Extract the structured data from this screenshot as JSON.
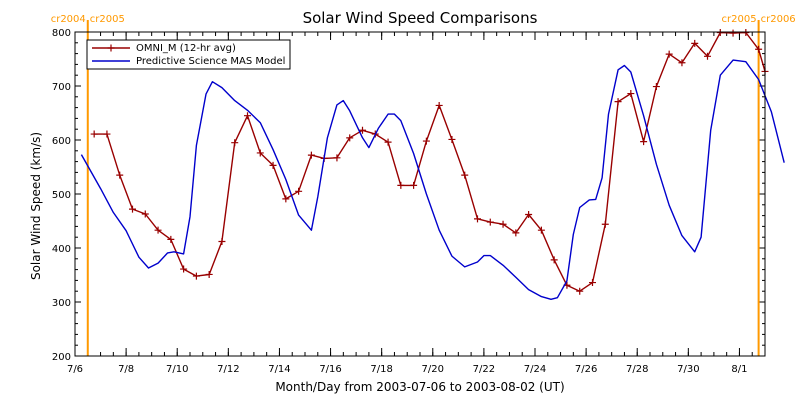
{
  "chart_data": {
    "type": "line",
    "title": "Solar Wind Speed Comparisons",
    "xlabel": "Month/Day from 2003-07-06 to 2003-08-02 (UT)",
    "ylabel": "Solar Wind Speed (km/s)",
    "ylim": [
      200,
      800
    ],
    "y_ticks": [
      200,
      300,
      400,
      500,
      600,
      700,
      800
    ],
    "xlim": [
      "2003-07-06",
      "2003-08-02"
    ],
    "x_ticks": [
      {
        "date": "2003-07-06",
        "label": "7/6"
      },
      {
        "date": "2003-07-08",
        "label": "7/8"
      },
      {
        "date": "2003-07-10",
        "label": "7/10"
      },
      {
        "date": "2003-07-12",
        "label": "7/12"
      },
      {
        "date": "2003-07-14",
        "label": "7/14"
      },
      {
        "date": "2003-07-16",
        "label": "7/16"
      },
      {
        "date": "2003-07-18",
        "label": "7/18"
      },
      {
        "date": "2003-07-20",
        "label": "7/20"
      },
      {
        "date": "2003-07-22",
        "label": "7/22"
      },
      {
        "date": "2003-07-24",
        "label": "7/24"
      },
      {
        "date": "2003-07-26",
        "label": "7/26"
      },
      {
        "date": "2003-07-28",
        "label": "7/28"
      },
      {
        "date": "2003-07-30",
        "label": "7/30"
      },
      {
        "date": "2003-08-01",
        "label": "8/1"
      }
    ],
    "legend_position": "top-left",
    "markers": [
      {
        "date": "2003-07-06 12:00",
        "label_left": "cr2004",
        "label_right": "cr2005",
        "color": "#FF9900"
      },
      {
        "date": "2003-08-01 18:00",
        "label_left": "cr2005",
        "label_right": "cr2006",
        "color": "#FF9900"
      }
    ],
    "series": [
      {
        "name": "OMNI_M (12-hr avg)",
        "color": "#990000",
        "marker": "+",
        "points": [
          [
            "2003-07-06 18:00",
            611
          ],
          [
            "2003-07-07 06:00",
            611
          ],
          [
            "2003-07-07 18:00",
            535
          ],
          [
            "2003-07-08 06:00",
            472
          ],
          [
            "2003-07-08 18:00",
            463
          ],
          [
            "2003-07-09 06:00",
            433
          ],
          [
            "2003-07-09 18:00",
            416
          ],
          [
            "2003-07-10 06:00",
            361
          ],
          [
            "2003-07-10 18:00",
            348
          ],
          [
            "2003-07-11 06:00",
            351
          ],
          [
            "2003-07-11 18:00",
            412
          ],
          [
            "2003-07-12 06:00",
            595
          ],
          [
            "2003-07-12 18:00",
            645
          ],
          [
            "2003-07-13 06:00",
            576
          ],
          [
            "2003-07-13 18:00",
            553
          ],
          [
            "2003-07-14 06:00",
            491
          ],
          [
            "2003-07-14 18:00",
            505
          ],
          [
            "2003-07-15 06:00",
            572
          ],
          [
            "2003-07-15 18:00",
            566
          ],
          [
            "2003-07-16 06:00",
            567
          ],
          [
            "2003-07-16 18:00",
            604
          ],
          [
            "2003-07-17 06:00",
            618
          ],
          [
            "2003-07-17 18:00",
            611
          ],
          [
            "2003-07-18 06:00",
            596
          ],
          [
            "2003-07-18 18:00",
            516
          ],
          [
            "2003-07-19 06:00",
            516
          ],
          [
            "2003-07-19 18:00",
            598
          ],
          [
            "2003-07-20 06:00",
            664
          ],
          [
            "2003-07-20 18:00",
            601
          ],
          [
            "2003-07-21 06:00",
            535
          ],
          [
            "2003-07-21 18:00",
            454
          ],
          [
            "2003-07-22 06:00",
            448
          ],
          [
            "2003-07-22 18:00",
            444
          ],
          [
            "2003-07-23 06:00",
            428
          ],
          [
            "2003-07-23 18:00",
            462
          ],
          [
            "2003-07-24 06:00",
            433
          ],
          [
            "2003-07-24 18:00",
            378
          ],
          [
            "2003-07-25 06:00",
            331
          ],
          [
            "2003-07-25 18:00",
            320
          ],
          [
            "2003-07-26 06:00",
            336
          ],
          [
            "2003-07-26 18:00",
            444
          ],
          [
            "2003-07-27 06:00",
            671
          ],
          [
            "2003-07-27 18:00",
            686
          ],
          [
            "2003-07-28 06:00",
            597
          ],
          [
            "2003-07-28 18:00",
            699
          ],
          [
            "2003-07-29 06:00",
            759
          ],
          [
            "2003-07-29 18:00",
            743
          ],
          [
            "2003-07-30 06:00",
            779
          ],
          [
            "2003-07-30 18:00",
            755
          ],
          [
            "2003-07-31 06:00",
            799
          ],
          [
            "2003-07-31 18:00",
            798
          ],
          [
            "2003-08-01 06:00",
            799
          ],
          [
            "2003-08-01 18:00",
            768
          ],
          [
            "2003-08-02 00:00",
            727
          ]
        ]
      },
      {
        "name": "Predictive Science MAS Model",
        "color": "#0000CC",
        "points": [
          [
            "2003-07-06 06:00",
            573
          ],
          [
            "2003-07-07 00:00",
            510
          ],
          [
            "2003-07-07 12:00",
            466
          ],
          [
            "2003-07-08 00:00",
            432
          ],
          [
            "2003-07-08 12:00",
            383
          ],
          [
            "2003-07-08 21:00",
            363
          ],
          [
            "2003-07-09 06:00",
            372
          ],
          [
            "2003-07-09 15:00",
            391
          ],
          [
            "2003-07-09 21:00",
            393
          ],
          [
            "2003-07-10 06:00",
            389
          ],
          [
            "2003-07-10 12:00",
            458
          ],
          [
            "2003-07-10 18:00",
            590
          ],
          [
            "2003-07-11 03:00",
            685
          ],
          [
            "2003-07-11 09:00",
            708
          ],
          [
            "2003-07-11 18:00",
            697
          ],
          [
            "2003-07-12 06:00",
            673
          ],
          [
            "2003-07-12 18:00",
            655
          ],
          [
            "2003-07-13 06:00",
            632
          ],
          [
            "2003-07-13 18:00",
            582
          ],
          [
            "2003-07-14 06:00",
            527
          ],
          [
            "2003-07-14 18:00",
            461
          ],
          [
            "2003-07-15 06:00",
            433
          ],
          [
            "2003-07-15 12:00",
            495
          ],
          [
            "2003-07-15 21:00",
            604
          ],
          [
            "2003-07-16 06:00",
            665
          ],
          [
            "2003-07-16 12:00",
            673
          ],
          [
            "2003-07-16 18:00",
            654
          ],
          [
            "2003-07-17 06:00",
            604
          ],
          [
            "2003-07-17 12:00",
            586
          ],
          [
            "2003-07-17 21:00",
            622
          ],
          [
            "2003-07-18 06:00",
            648
          ],
          [
            "2003-07-18 12:00",
            648
          ],
          [
            "2003-07-18 18:00",
            636
          ],
          [
            "2003-07-19 06:00",
            575
          ],
          [
            "2003-07-19 18:00",
            500
          ],
          [
            "2003-07-20 06:00",
            433
          ],
          [
            "2003-07-20 18:00",
            385
          ],
          [
            "2003-07-21 06:00",
            365
          ],
          [
            "2003-07-21 18:00",
            374
          ],
          [
            "2003-07-22 00:00",
            386
          ],
          [
            "2003-07-22 06:00",
            386
          ],
          [
            "2003-07-22 18:00",
            368
          ],
          [
            "2003-07-23 06:00",
            346
          ],
          [
            "2003-07-23 18:00",
            323
          ],
          [
            "2003-07-24 06:00",
            310
          ],
          [
            "2003-07-24 15:00",
            305
          ],
          [
            "2003-07-24 21:00",
            308
          ],
          [
            "2003-07-25 06:00",
            339
          ],
          [
            "2003-07-25 12:00",
            425
          ],
          [
            "2003-07-25 18:00",
            475
          ],
          [
            "2003-07-26 03:00",
            489
          ],
          [
            "2003-07-26 09:00",
            490
          ],
          [
            "2003-07-26 15:00",
            530
          ],
          [
            "2003-07-26 21:00",
            648
          ],
          [
            "2003-07-27 06:00",
            730
          ],
          [
            "2003-07-27 12:00",
            738
          ],
          [
            "2003-07-27 18:00",
            726
          ],
          [
            "2003-07-28 06:00",
            645
          ],
          [
            "2003-07-28 18:00",
            555
          ],
          [
            "2003-07-29 06:00",
            479
          ],
          [
            "2003-07-29 18:00",
            423
          ],
          [
            "2003-07-30 06:00",
            393
          ],
          [
            "2003-07-30 12:00",
            420
          ],
          [
            "2003-07-30 21:00",
            618
          ],
          [
            "2003-07-31 06:00",
            720
          ],
          [
            "2003-07-31 18:00",
            748
          ],
          [
            "2003-08-01 06:00",
            745
          ],
          [
            "2003-08-01 18:00",
            712
          ],
          [
            "2003-08-02 06:00",
            652
          ],
          [
            "2003-08-02 18:00",
            558
          ]
        ]
      }
    ]
  }
}
